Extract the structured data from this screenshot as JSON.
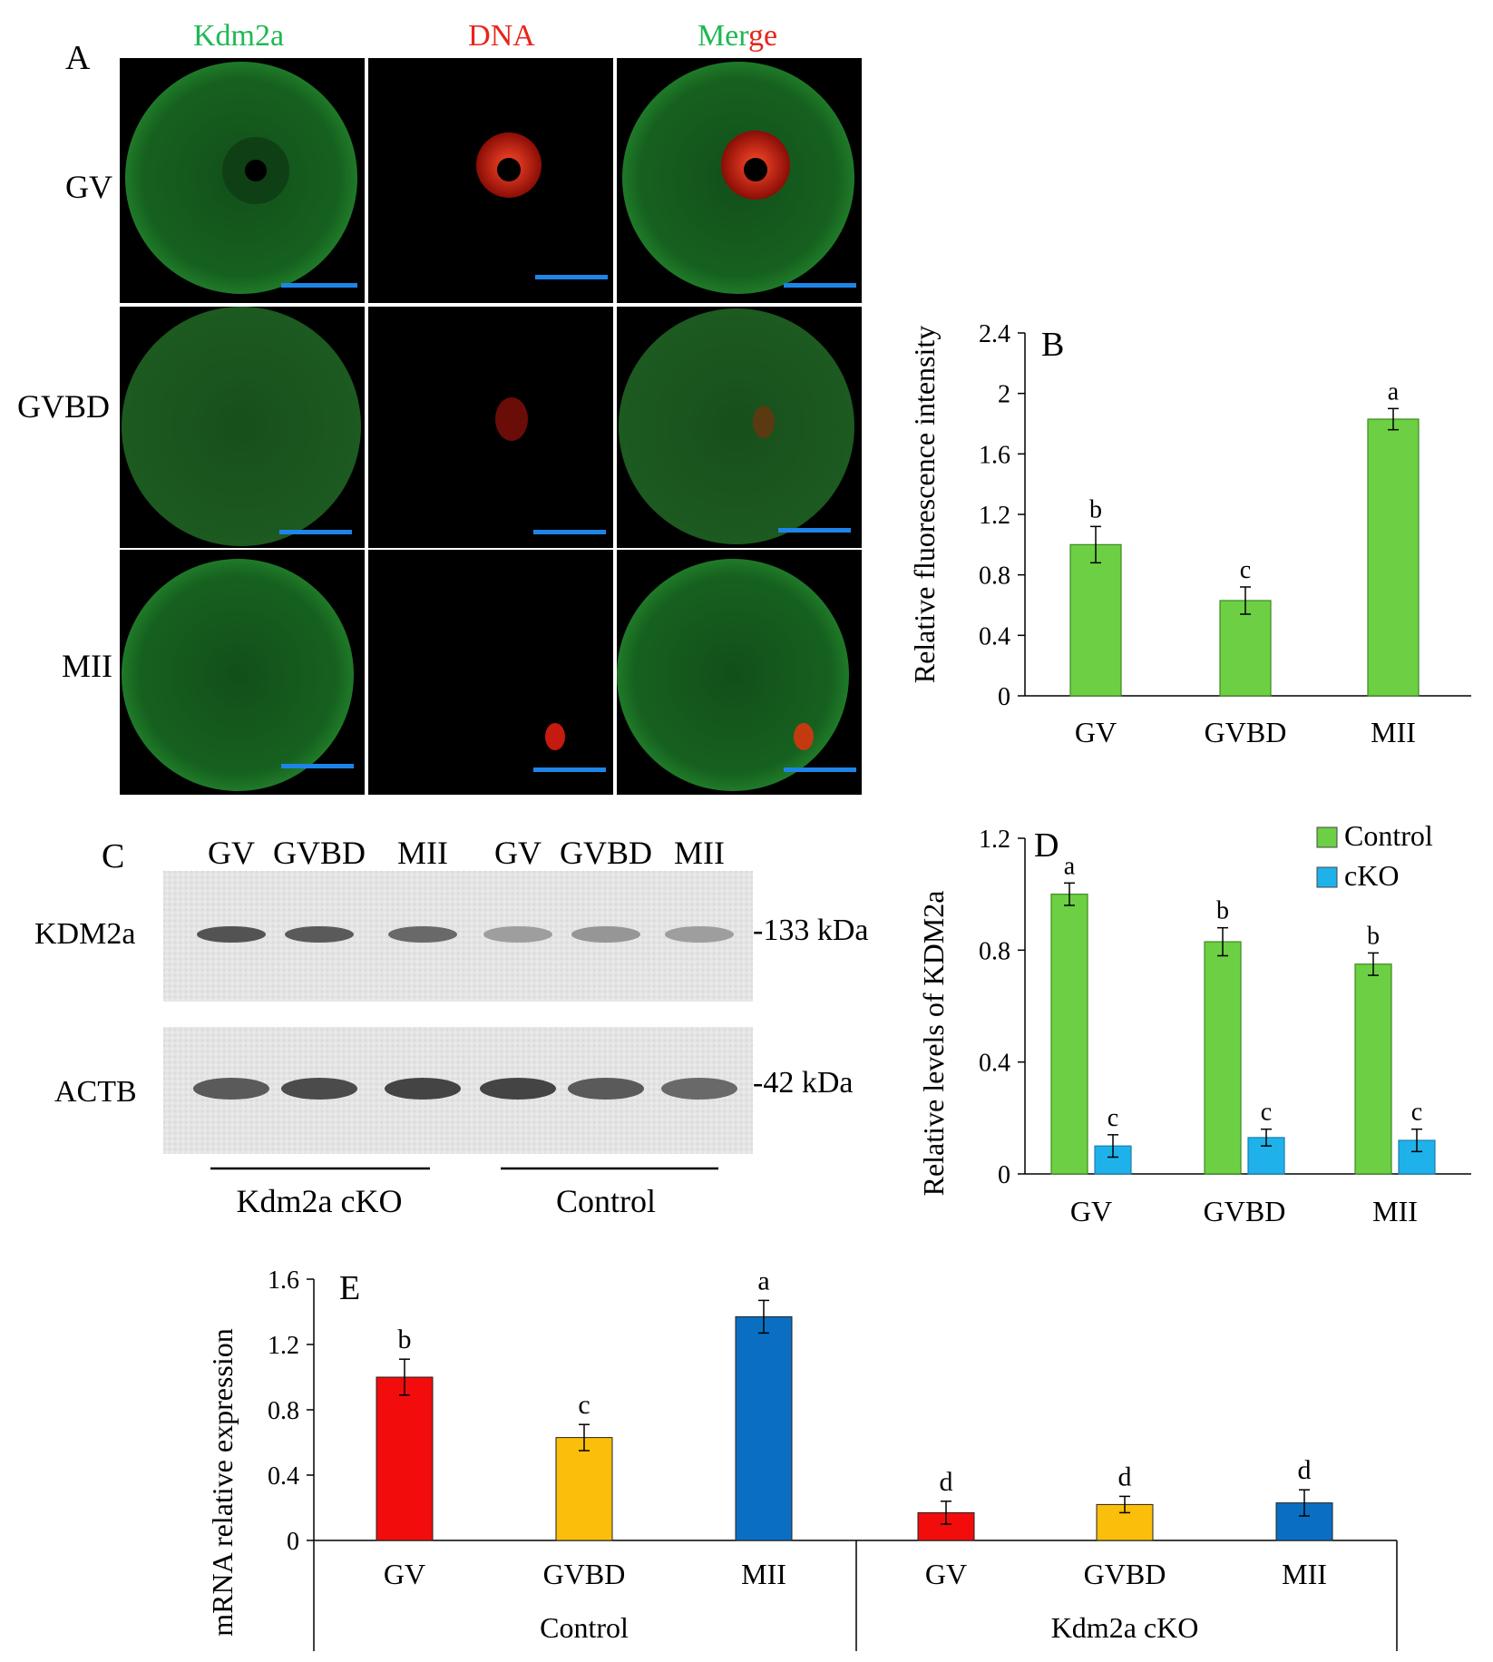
{
  "panel_a": {
    "letter": "A",
    "columns": [
      "Kdm2a",
      "DNA",
      "Merge"
    ],
    "merge_parts": [
      "Mer",
      "ge"
    ],
    "rows": [
      "GV",
      "GVBD",
      "MII"
    ],
    "colors": {
      "green": "#1fb854",
      "red": "#e8251c",
      "scale_bar": "#1f84e8"
    }
  },
  "panel_c": {
    "letter": "C",
    "lane_labels": [
      "GV",
      "GVBD",
      "MII",
      "GV",
      "GVBD",
      "MII"
    ],
    "band_labels": [
      "KDM2a",
      "ACTB"
    ],
    "size_labels": [
      "-133 kDa",
      "-42 kDa"
    ],
    "group_labels": [
      "Kdm2a cKO",
      "Control"
    ],
    "kdm2a_intensity": [
      0.85,
      0.8,
      0.7,
      0.35,
      0.4,
      0.35
    ],
    "actb_intensity": [
      0.8,
      0.9,
      0.95,
      0.95,
      0.8,
      0.7
    ]
  },
  "chart_data": [
    {
      "panel": "B",
      "type": "bar",
      "ylabel": "Relative  fluorescence intensity",
      "categories": [
        "GV",
        "GVBD",
        "MII"
      ],
      "series": [
        {
          "values": [
            1.0,
            0.63,
            1.83
          ],
          "errors": [
            0.12,
            0.09,
            0.07
          ],
          "color": "#6dd044"
        }
      ],
      "significance": [
        "b",
        "c",
        "a"
      ],
      "ylim": [
        0,
        2.4
      ],
      "yticks": [
        "0",
        "0.4",
        "0.8",
        "1.2",
        "1.6",
        "2",
        "2.4"
      ]
    },
    {
      "panel": "D",
      "type": "bar",
      "ylabel": "Relative  levels of  KDM2a",
      "categories": [
        "GV",
        "GVBD",
        "MII"
      ],
      "series": [
        {
          "name": "Control",
          "values": [
            1.0,
            0.83,
            0.75
          ],
          "errors": [
            0.04,
            0.05,
            0.04
          ],
          "color": "#6dd044",
          "significance": [
            "a",
            "b",
            "b"
          ]
        },
        {
          "name": "cKO",
          "values": [
            0.1,
            0.13,
            0.12
          ],
          "errors": [
            0.04,
            0.03,
            0.04
          ],
          "color": "#1fb2ea",
          "significance": [
            "c",
            "c",
            "c"
          ]
        }
      ],
      "legend": "top-right",
      "ylim": [
        0,
        1.2
      ],
      "yticks": [
        "0",
        "0.4",
        "0.8",
        "1.2"
      ]
    },
    {
      "panel": "E",
      "type": "bar",
      "ylabel": "mRNA relative expression",
      "categories": [
        "GV",
        "GVBD",
        "MII",
        "GV",
        "GVBD",
        "MII"
      ],
      "groups": [
        "Control",
        "Kdm2a cKO"
      ],
      "series": [
        {
          "values": [
            1.0,
            0.63,
            1.37,
            0.17,
            0.22,
            0.23
          ],
          "errors": [
            0.11,
            0.08,
            0.1,
            0.07,
            0.05,
            0.08
          ],
          "colors": [
            "#f20c0c",
            "#fbbe0a",
            "#0a6fc2",
            "#f20c0c",
            "#fbbe0a",
            "#0a6fc2"
          ]
        }
      ],
      "significance": [
        "b",
        "c",
        "a",
        "d",
        "d",
        "d"
      ],
      "ylim": [
        0,
        1.6
      ],
      "yticks": [
        "0",
        "0.4",
        "0.8",
        "1.2",
        "1.6"
      ]
    }
  ]
}
